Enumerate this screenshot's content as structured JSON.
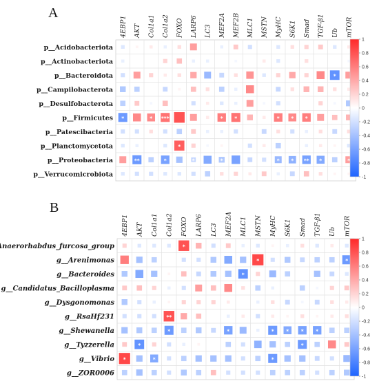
{
  "chart_data": [
    {
      "panel": "A",
      "type": "heatmap",
      "panel_label": "A",
      "columns": [
        "4EBP1",
        "AKT",
        "Col1a1",
        "Col1a2",
        "FOXO",
        "LARP6",
        "LC3",
        "MEF2A",
        "MEF2B",
        "MLC1",
        "MSTN",
        "MyHC",
        "S6K1",
        "Smad",
        "TGF-β1",
        "Ub",
        "mTOR"
      ],
      "rows": [
        "p__Acidobacteriota",
        "p__Actinobacteriota",
        "p__Bacteroidota",
        "p__Campilobacterota",
        "p__Desulfobacterota",
        "p__Firmicutes",
        "p__Patescibacteria",
        "p__Planctomycetota",
        "p__Proteobacteria",
        "p__Verrucomicrobiota"
      ],
      "values": [
        [
          -0.15,
          0.05,
          0.1,
          -0.1,
          0.15,
          0.45,
          0.0,
          -0.1,
          0.25,
          -0.2,
          0.0,
          -0.15,
          0.15,
          0.2,
          0.25,
          -0.15,
          0.1
        ],
        [
          -0.1,
          0.0,
          0.0,
          0.2,
          0.3,
          -0.1,
          -0.1,
          0.0,
          -0.05,
          0.0,
          0.1,
          -0.15,
          0.0,
          0.15,
          0.0,
          0.0,
          -0.05
        ],
        [
          -0.2,
          0.45,
          0.2,
          0.1,
          0.15,
          0.4,
          -0.45,
          -0.25,
          0.15,
          0.5,
          -0.15,
          0.2,
          0.4,
          0.2,
          0.55,
          -0.7,
          0.45
        ],
        [
          -0.35,
          -0.3,
          0.0,
          -0.25,
          0.05,
          0.3,
          0.15,
          -0.3,
          -0.1,
          0.55,
          0.0,
          -0.25,
          0.15,
          0.35,
          0.35,
          0.15,
          0.1
        ],
        [
          -0.3,
          0.25,
          -0.05,
          0.3,
          0.0,
          -0.2,
          0.1,
          -0.15,
          -0.1,
          0.45,
          -0.05,
          -0.2,
          0.0,
          0.0,
          0.2,
          -0.05,
          -0.35
        ],
        [
          -0.65,
          0.55,
          0.55,
          0.65,
          0.8,
          0.45,
          0.1,
          0.6,
          0.65,
          0.35,
          0.1,
          0.6,
          0.55,
          0.6,
          0.45,
          0.3,
          0.35
        ],
        [
          -0.2,
          -0.2,
          0.15,
          -0.2,
          -0.3,
          0.25,
          -0.1,
          -0.1,
          -0.2,
          0.0,
          -0.25,
          0.15,
          -0.2,
          -0.1,
          0.15,
          -0.25,
          0.15
        ],
        [
          -0.15,
          -0.1,
          0.0,
          -0.15,
          0.75,
          0.2,
          -0.05,
          0.05,
          0.0,
          -0.2,
          0.1,
          -0.3,
          0.0,
          -0.1,
          0.1,
          0.05,
          -0.15
        ],
        [
          0.45,
          -0.65,
          -0.3,
          -0.6,
          -0.4,
          -0.25,
          -0.55,
          -0.35,
          -0.6,
          -0.25,
          -0.2,
          -0.45,
          -0.5,
          -0.6,
          -0.55,
          -0.3,
          0.45
        ],
        [
          -0.15,
          -0.2,
          -0.2,
          -0.15,
          -0.15,
          -0.2,
          -0.3,
          0.15,
          0.2,
          0.1,
          0.25,
          -0.1,
          -0.25,
          0.3,
          0.15,
          0.05,
          0.05
        ]
      ],
      "significance": [
        [
          "",
          "",
          "",
          "",
          "",
          "",
          "",
          "",
          "",
          "",
          "",
          "",
          "",
          "",
          "",
          "",
          ""
        ],
        [
          "",
          "",
          "",
          "",
          "",
          "",
          "",
          "",
          "",
          "",
          "",
          "",
          "",
          "",
          "",
          "",
          ""
        ],
        [
          "",
          "",
          "",
          "",
          "",
          "",
          "",
          "",
          "",
          "",
          "",
          "",
          "",
          "",
          "",
          "*",
          ""
        ],
        [
          "",
          "",
          "",
          "",
          "",
          "",
          "",
          "",
          "",
          "",
          "",
          "",
          "",
          "",
          "",
          "",
          ""
        ],
        [
          "",
          "",
          "",
          "",
          "",
          "",
          "",
          "",
          "",
          "",
          "",
          "",
          "",
          "",
          "",
          "",
          ""
        ],
        [
          "*",
          "",
          "*",
          "***",
          "",
          "",
          "",
          "*",
          "*",
          "",
          "",
          "*",
          "*",
          "*",
          "",
          "",
          ""
        ],
        [
          "",
          "",
          "",
          "",
          "",
          "",
          "",
          "",
          "",
          "",
          "",
          "",
          "",
          "",
          "",
          "",
          ""
        ],
        [
          "",
          "",
          "",
          "",
          "*",
          "",
          "",
          "",
          "",
          "",
          "",
          "",
          "",
          "",
          "",
          "",
          ""
        ],
        [
          "",
          "**",
          "",
          "*",
          "",
          "*",
          "",
          "*",
          "",
          "",
          "",
          "*",
          "*",
          "**",
          "*",
          "",
          "*"
        ],
        [
          "",
          "",
          "",
          "",
          "",
          "",
          "",
          "",
          "",
          "",
          "",
          "",
          "",
          "",
          "",
          "",
          ""
        ]
      ],
      "colorbar_ticks": [
        "1",
        "0.8",
        "0.6",
        "0.4",
        "0.2",
        "0",
        "-0.2",
        "-0.4",
        "-0.6",
        "-0.8",
        "-1"
      ],
      "vmin": -1,
      "vmax": 1
    },
    {
      "panel": "B",
      "type": "heatmap",
      "panel_label": "B",
      "columns": [
        "4EBP1",
        "AKT",
        "Col1a1",
        "Col1a2",
        "FOXO",
        "LARP6",
        "LC3",
        "MEF2A",
        "MLC1",
        "MSTN",
        "MyHC",
        "S6K1",
        "Smad",
        "TGF-β1",
        "Ub",
        "mTOR"
      ],
      "rows": [
        "g__Anaerorhabdus_furcosa_group",
        "g__Arenimonas",
        "g__Bacteroides",
        "g__Candidatus_Bacilloplasma",
        "g__Dysgonomonas",
        "g__RsaHf231",
        "g__Shewanella",
        "g__Tyzzerella",
        "g__Vibrio",
        "g__ZOR0006"
      ],
      "values": [
        [
          0.2,
          -0.15,
          -0.15,
          -0.15,
          0.8,
          0.35,
          -0.2,
          0.25,
          -0.1,
          -0.15,
          0.05,
          -0.1,
          0.15,
          -0.15,
          0.1,
          -0.15
        ],
        [
          0.6,
          -0.4,
          -0.3,
          0.0,
          -0.2,
          -0.2,
          -0.35,
          -0.55,
          -0.4,
          0.85,
          -0.2,
          -0.35,
          -0.25,
          -0.3,
          -0.3,
          -0.65
        ],
        [
          -0.35,
          -0.55,
          -0.4,
          0.05,
          0.3,
          -0.25,
          -0.35,
          -0.4,
          -0.7,
          0.2,
          -0.45,
          -0.3,
          0.0,
          -0.4,
          -0.25,
          -0.15
        ],
        [
          0.25,
          0.3,
          0.2,
          -0.1,
          -0.2,
          0.45,
          0.3,
          0.55,
          0.15,
          -0.3,
          -0.1,
          0.0,
          -0.3,
          -0.05,
          0.2,
          0.25
        ],
        [
          -0.35,
          -0.2,
          -0.1,
          0.05,
          0.2,
          0.2,
          0.2,
          0.1,
          0.0,
          -0.1,
          0.15,
          -0.25,
          -0.05,
          -0.25,
          0.15,
          0.1
        ],
        [
          -0.2,
          -0.2,
          -0.2,
          0.8,
          0.4,
          0.3,
          0.0,
          -0.1,
          0.1,
          -0.2,
          0.1,
          0.05,
          0.15,
          0.05,
          0.1,
          0.15
        ],
        [
          -0.4,
          -0.35,
          -0.3,
          -0.65,
          -0.3,
          -0.35,
          -0.25,
          -0.6,
          -0.45,
          -0.1,
          -0.65,
          -0.55,
          -0.6,
          -0.6,
          -0.3,
          -0.3
        ],
        [
          0.25,
          -0.7,
          0.2,
          -0.2,
          -0.1,
          0.05,
          0.0,
          -0.3,
          -0.2,
          -0.5,
          -0.4,
          -0.3,
          -0.65,
          -0.3,
          0.55,
          0.25
        ],
        [
          0.85,
          -0.4,
          -0.55,
          -0.2,
          -0.3,
          -0.4,
          -0.4,
          -0.4,
          -0.2,
          -0.3,
          -0.65,
          -0.4,
          -0.4,
          -0.25,
          -0.2,
          -0.45
        ],
        [
          -0.3,
          -0.4,
          -0.3,
          -0.2,
          -0.35,
          -0.3,
          0.3,
          -0.2,
          -0.2,
          -0.2,
          -0.3,
          -0.3,
          -0.3,
          -0.2,
          -0.3,
          -0.35
        ]
      ],
      "significance": [
        [
          "",
          "",
          "",
          "",
          "*",
          "",
          "",
          "",
          "",
          "",
          "",
          "",
          "",
          "",
          "",
          ""
        ],
        [
          "",
          "",
          "",
          "",
          "",
          "",
          "",
          "",
          "",
          "*",
          "",
          "",
          "",
          "",
          "",
          "*"
        ],
        [
          "",
          "",
          "",
          "",
          "",
          "",
          "",
          "",
          "*",
          "",
          "",
          "",
          "",
          "",
          "",
          ""
        ],
        [
          "",
          "",
          "",
          "",
          "",
          "",
          "",
          "",
          "",
          "",
          "",
          "",
          "",
          "",
          "",
          ""
        ],
        [
          "",
          "",
          "",
          "",
          "",
          "",
          "",
          "",
          "",
          "",
          "",
          "",
          "",
          "",
          "",
          ""
        ],
        [
          "",
          "",
          "",
          "**",
          "",
          "",
          "",
          "",
          "",
          "",
          "",
          "",
          "",
          "",
          "",
          ""
        ],
        [
          "",
          "",
          "",
          "*",
          "",
          "",
          "",
          "*",
          "",
          "",
          "*",
          "*",
          "*",
          "*",
          "",
          ""
        ],
        [
          "",
          "*",
          "",
          "",
          "",
          "",
          "",
          "",
          "",
          "",
          "",
          "",
          "*",
          "",
          "",
          ""
        ],
        [
          "*",
          "",
          "*",
          "",
          "",
          "",
          "",
          "",
          "",
          "",
          "*",
          "",
          "",
          "",
          "",
          ""
        ],
        [
          "",
          "",
          "",
          "",
          "",
          "",
          "",
          "",
          "",
          "",
          "",
          "",
          "",
          "",
          "",
          ""
        ]
      ],
      "colorbar_ticks": [
        "1",
        "0.8",
        "0.6",
        "0.4",
        "0.2",
        "0",
        "-0.2",
        "-0.4",
        "-0.6",
        "-0.8",
        "-1"
      ],
      "vmin": -1,
      "vmax": 1
    }
  ]
}
